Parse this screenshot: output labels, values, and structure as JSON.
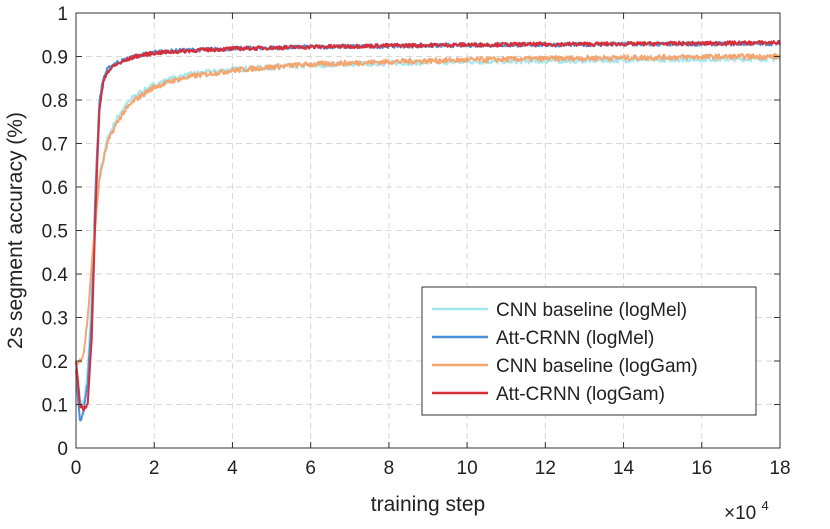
{
  "chart_data": {
    "type": "line",
    "title": "",
    "xlabel": "training step",
    "ylabel": "2s segment accuracy (%)",
    "x_multiplier_label": "×10",
    "x_multiplier_exponent": "4",
    "xlim": [
      0,
      18
    ],
    "ylim": [
      0,
      1
    ],
    "x_ticks": [
      0,
      2,
      4,
      6,
      8,
      10,
      12,
      14,
      16,
      18
    ],
    "y_ticks": [
      0,
      0.1,
      0.2,
      0.3,
      0.4,
      0.5,
      0.6,
      0.7,
      0.8,
      0.9,
      1
    ],
    "x_tick_labels": [
      "0",
      "2",
      "4",
      "6",
      "8",
      "10",
      "12",
      "14",
      "16",
      "18"
    ],
    "y_tick_labels": [
      "0",
      "0.1",
      "0.2",
      "0.3",
      "0.4",
      "0.5",
      "0.6",
      "0.7",
      "0.8",
      "0.9",
      "1"
    ],
    "grid": true,
    "legend_position": "bottom-right",
    "series": [
      {
        "name": "CNN baseline (logMel)",
        "color": "#a6e8f0",
        "x": [
          0,
          0.1,
          0.2,
          0.3,
          0.4,
          0.5,
          0.6,
          0.8,
          1.0,
          1.2,
          1.5,
          2,
          2.5,
          3,
          4,
          5,
          6,
          8,
          10,
          12,
          14,
          16,
          18
        ],
        "y": [
          0.2,
          0.11,
          0.1,
          0.18,
          0.35,
          0.52,
          0.63,
          0.71,
          0.75,
          0.78,
          0.81,
          0.835,
          0.85,
          0.86,
          0.87,
          0.875,
          0.88,
          0.885,
          0.888,
          0.89,
          0.892,
          0.894,
          0.895
        ]
      },
      {
        "name": "Att-CRNN (logMel)",
        "color": "#4a90d9",
        "x": [
          0,
          0.1,
          0.2,
          0.3,
          0.4,
          0.5,
          0.6,
          0.7,
          0.8,
          1.0,
          1.5,
          2,
          3,
          4,
          6,
          8,
          10,
          12,
          14,
          16,
          18
        ],
        "y": [
          0.18,
          0.06,
          0.09,
          0.15,
          0.3,
          0.6,
          0.8,
          0.85,
          0.87,
          0.885,
          0.9,
          0.91,
          0.915,
          0.918,
          0.922,
          0.924,
          0.926,
          0.927,
          0.928,
          0.929,
          0.93
        ]
      },
      {
        "name": "CNN baseline (logGam)",
        "color": "#f4a570",
        "x": [
          0,
          0.1,
          0.2,
          0.3,
          0.4,
          0.5,
          0.6,
          0.8,
          1.0,
          1.2,
          1.5,
          2,
          2.5,
          3,
          4,
          5,
          6,
          8,
          10,
          12,
          14,
          16,
          18
        ],
        "y": [
          0.19,
          0.2,
          0.22,
          0.3,
          0.42,
          0.52,
          0.62,
          0.7,
          0.74,
          0.77,
          0.8,
          0.83,
          0.845,
          0.855,
          0.868,
          0.876,
          0.882,
          0.888,
          0.892,
          0.895,
          0.897,
          0.899,
          0.9
        ]
      },
      {
        "name": "Att-CRNN (logGam)",
        "color": "#d62f3a",
        "x": [
          0,
          0.1,
          0.2,
          0.3,
          0.4,
          0.5,
          0.6,
          0.7,
          0.8,
          1.0,
          1.5,
          2,
          3,
          4,
          6,
          8,
          10,
          12,
          14,
          16,
          18
        ],
        "y": [
          0.2,
          0.1,
          0.09,
          0.1,
          0.25,
          0.55,
          0.78,
          0.84,
          0.865,
          0.88,
          0.9,
          0.908,
          0.914,
          0.918,
          0.922,
          0.925,
          0.927,
          0.928,
          0.929,
          0.93,
          0.932
        ]
      }
    ]
  }
}
